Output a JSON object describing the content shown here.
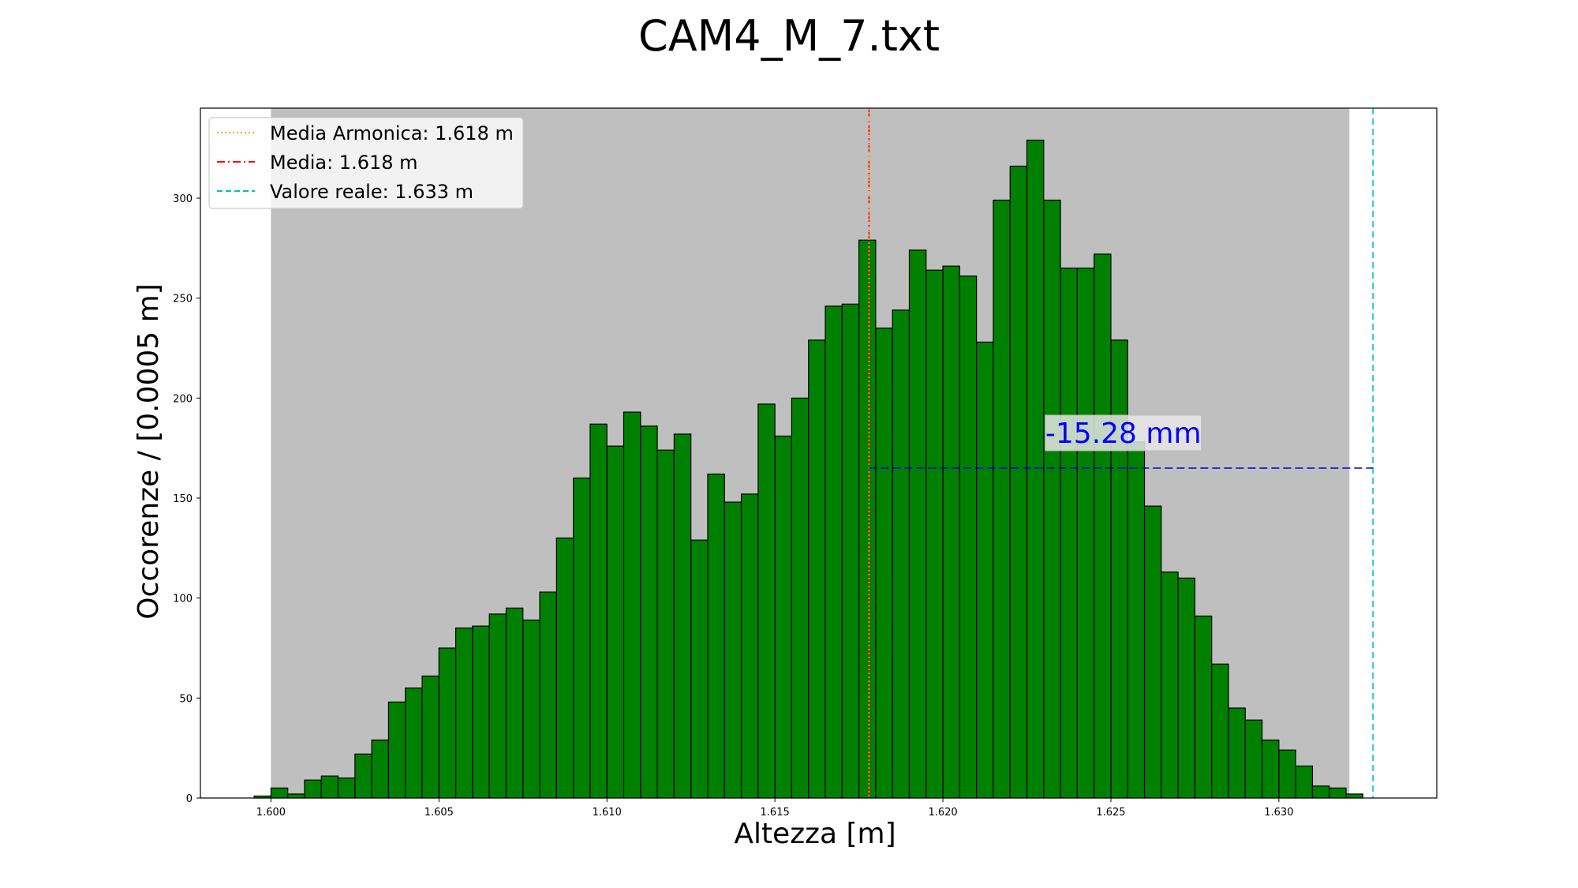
{
  "chart_data": {
    "type": "bar",
    "title": "CAM4_M_7.txt",
    "xlabel": "Altezza [m]",
    "ylabel": "Occorenze / [0.0005 m]",
    "xlim": [
      1.5979,
      1.6347
    ],
    "ylim": [
      0,
      345
    ],
    "xticks": [
      {
        "value": 1.6,
        "label": "1.600"
      },
      {
        "value": 1.605,
        "label": "1.605"
      },
      {
        "value": 1.61,
        "label": "1.610"
      },
      {
        "value": 1.615,
        "label": "1.615"
      },
      {
        "value": 1.62,
        "label": "1.620"
      },
      {
        "value": 1.625,
        "label": "1.625"
      },
      {
        "value": 1.63,
        "label": "1.630"
      }
    ],
    "yticks": [
      {
        "value": 0,
        "label": "0"
      },
      {
        "value": 50,
        "label": "50"
      },
      {
        "value": 100,
        "label": "100"
      },
      {
        "value": 150,
        "label": "150"
      },
      {
        "value": 200,
        "label": "200"
      },
      {
        "value": 250,
        "label": "250"
      },
      {
        "value": 300,
        "label": "300"
      }
    ],
    "bin_start": 1.5995,
    "bin_width": 0.0005,
    "values": [
      1,
      5,
      2,
      9,
      11,
      10,
      22,
      29,
      48,
      55,
      61,
      75,
      85,
      86,
      92,
      95,
      89,
      103,
      130,
      160,
      187,
      176,
      193,
      186,
      174,
      182,
      129,
      162,
      148,
      152,
      197,
      181,
      200,
      229,
      246,
      247,
      279,
      235,
      244,
      274,
      264,
      266,
      261,
      228,
      299,
      316,
      329,
      299,
      265,
      265,
      272,
      229,
      178,
      146,
      113,
      110,
      91,
      67,
      45,
      39,
      29,
      24,
      16,
      6,
      5,
      2
    ],
    "bar_color": "#008000",
    "bar_edge_color": "#000000",
    "shaded_region": {
      "from": 1.6,
      "to": 1.6321,
      "color": "#bfbfbf"
    },
    "lines": {
      "media_armonica": {
        "x": 1.6178,
        "color": "#ffa500"
      },
      "media": {
        "x": 1.6178,
        "color": "#ff0000"
      },
      "valore_reale": {
        "x": 1.6328,
        "color": "#00bfbf"
      }
    },
    "difference_arrow": {
      "x1": 1.6178,
      "x2": 1.6328,
      "y": 165,
      "color": "#0000cc"
    },
    "annotation": {
      "text": "-15.28 mm",
      "x": 1.6253,
      "y": 180,
      "color": "#0000ff"
    },
    "legend": {
      "placement": "top-left",
      "entries": [
        {
          "label": "Media Armonica: 1.618 m",
          "color": "#ffa500",
          "style": "dotted"
        },
        {
          "label": "Media: 1.618 m",
          "color": "#ff0000",
          "style": "dashdot"
        },
        {
          "label": "Valore reale: 1.633 m",
          "color": "#00bfbf",
          "style": "dashed"
        }
      ]
    }
  }
}
